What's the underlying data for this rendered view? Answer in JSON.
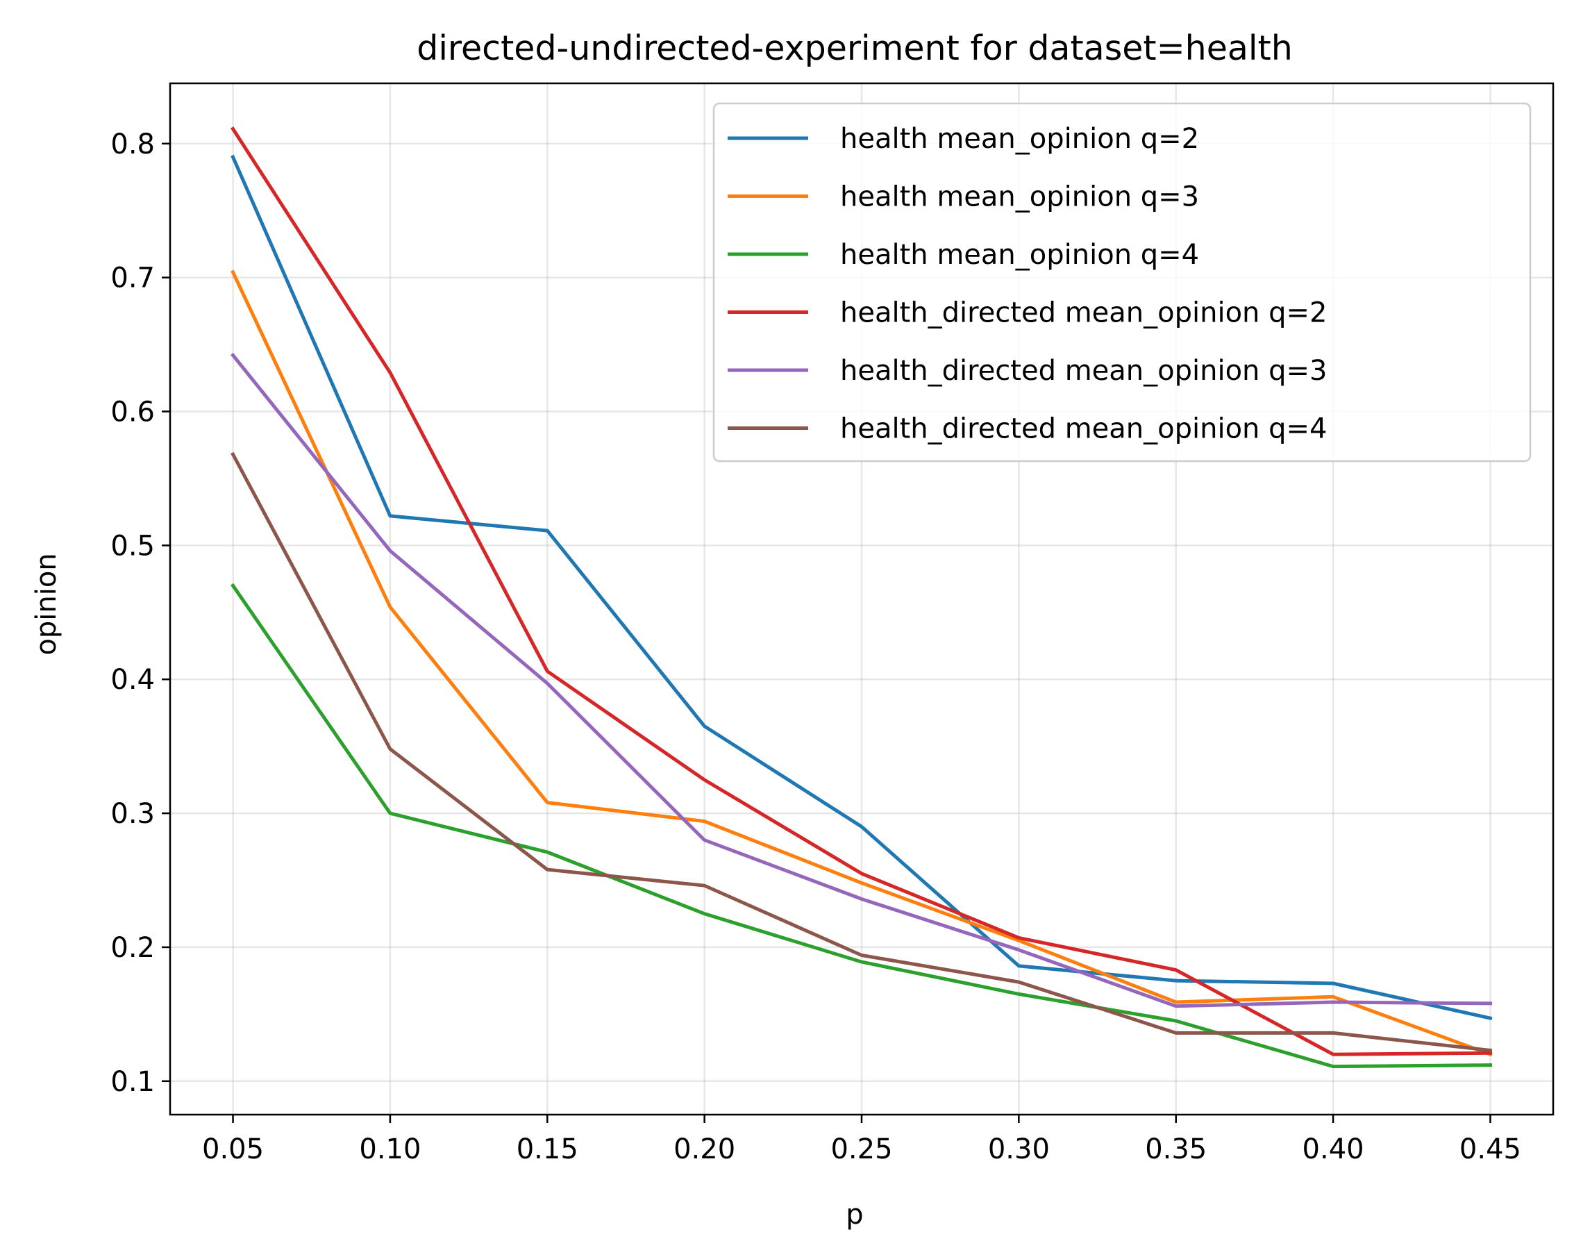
{
  "chart_data": {
    "type": "line",
    "title": "directed-undirected-experiment for dataset=health",
    "xlabel": "p",
    "ylabel": "opinion",
    "x": [
      0.05,
      0.1,
      0.15,
      0.2,
      0.25,
      0.3,
      0.35,
      0.4,
      0.45
    ],
    "xticks": [
      "0.05",
      "0.10",
      "0.15",
      "0.20",
      "0.25",
      "0.30",
      "0.35",
      "0.40",
      "0.45"
    ],
    "yticks": [
      "0.1",
      "0.2",
      "0.3",
      "0.4",
      "0.5",
      "0.6",
      "0.7",
      "0.8"
    ],
    "xlim": [
      0.03,
      0.47
    ],
    "ylim": [
      0.075,
      0.845
    ],
    "grid": true,
    "legend_position": "upper right",
    "series": [
      {
        "name": "health mean_opinion q=2",
        "color": "#1f77b4",
        "values": [
          0.79,
          0.522,
          0.511,
          0.365,
          0.29,
          0.186,
          0.175,
          0.173,
          0.147
        ]
      },
      {
        "name": "health mean_opinion q=3",
        "color": "#ff7f0e",
        "values": [
          0.704,
          0.454,
          0.308,
          0.294,
          0.248,
          0.205,
          0.159,
          0.163,
          0.12
        ]
      },
      {
        "name": "health mean_opinion q=4",
        "color": "#2ca02c",
        "values": [
          0.47,
          0.3,
          0.271,
          0.225,
          0.189,
          0.165,
          0.145,
          0.111,
          0.112
        ]
      },
      {
        "name": "health_directed mean_opinion q=2",
        "color": "#d62728",
        "values": [
          0.811,
          0.629,
          0.406,
          0.325,
          0.255,
          0.207,
          0.183,
          0.12,
          0.121
        ]
      },
      {
        "name": "health_directed mean_opinion q=3",
        "color": "#9467bd",
        "values": [
          0.642,
          0.496,
          0.397,
          0.28,
          0.236,
          0.198,
          0.156,
          0.159,
          0.158
        ]
      },
      {
        "name": "health_directed mean_opinion q=4",
        "color": "#8c564b",
        "values": [
          0.568,
          0.348,
          0.258,
          0.246,
          0.194,
          0.174,
          0.136,
          0.136,
          0.123
        ]
      }
    ]
  }
}
